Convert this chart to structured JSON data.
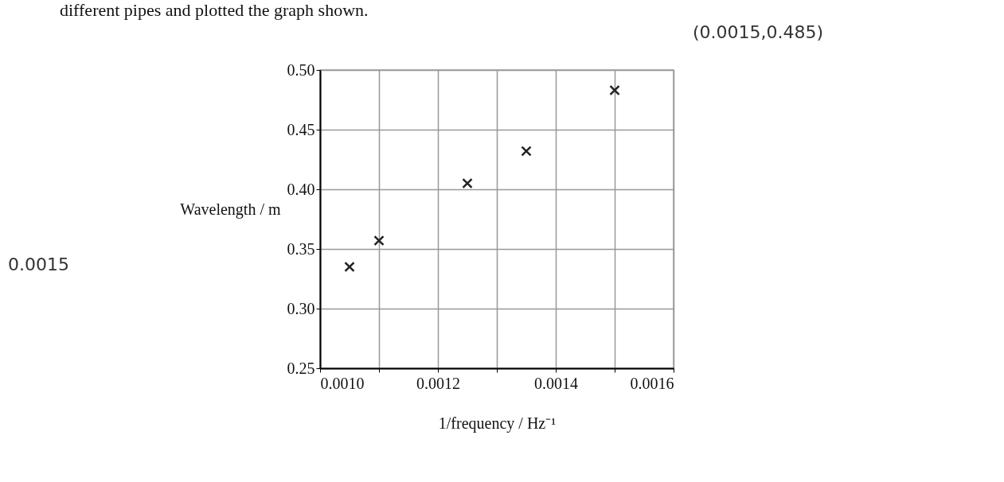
{
  "chart_data": {
    "type": "scatter",
    "xlabel": "1/frequency / Hz⁻¹",
    "ylabel": "Wavelength / m",
    "x": [
      0.00105,
      0.0011,
      0.00125,
      0.00135,
      0.0015
    ],
    "values": [
      0.335,
      0.357,
      0.405,
      0.432,
      0.483
    ],
    "color": "#222222",
    "xlim": [
      0.001,
      0.0016
    ],
    "ylim": [
      0.25,
      0.5
    ],
    "xticks": [
      {
        "value": 0.001,
        "label": "0.0010"
      },
      {
        "value": 0.0011,
        "label": null
      },
      {
        "value": 0.0012,
        "label": "0.0012"
      },
      {
        "value": 0.0013,
        "label": null
      },
      {
        "value": 0.0014,
        "label": "0.0014"
      },
      {
        "value": 0.0015,
        "label": null
      },
      {
        "value": 0.0016,
        "label": "0.0016"
      }
    ],
    "yticks": [
      {
        "value": 0.25,
        "label": "0.25"
      },
      {
        "value": 0.3,
        "label": "0.30"
      },
      {
        "value": 0.35,
        "label": "0.35"
      },
      {
        "value": 0.4,
        "label": "0.40"
      },
      {
        "value": 0.45,
        "label": "0.45"
      },
      {
        "value": 0.5,
        "label": "0.50"
      }
    ],
    "grid": true,
    "marker": "cross",
    "annotations": [
      "different pipes and plotted the graph shown.",
      "(0.0015,0.485)",
      "0.0015"
    ]
  }
}
